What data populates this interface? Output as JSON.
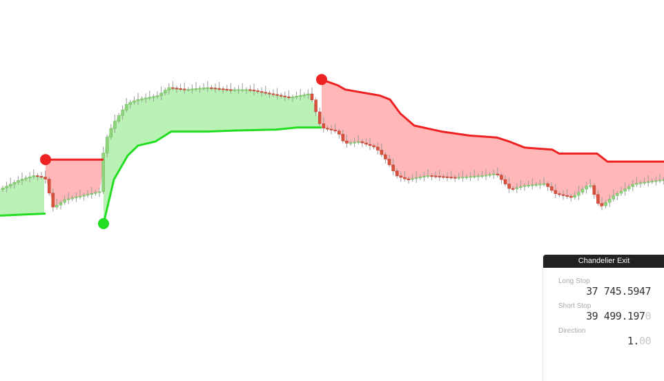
{
  "chart_data": {
    "type": "candlestick",
    "indicator": "Chandelier Exit",
    "long_stop_color": "#22dd22",
    "short_stop_color": "#ee2222",
    "long_fill_color": "#b6f0b0",
    "short_fill_color": "#ffb3b3",
    "bull_candle_color": "#8fd47c",
    "bear_candle_color": "#d9523e",
    "ylim": [
      0,
      100
    ],
    "segments": [
      {
        "direction": "long",
        "x_start": 0,
        "x_end": 66,
        "stop": [
          [
            0,
            24
          ],
          [
            30,
            24.5
          ],
          [
            66,
            25
          ]
        ]
      },
      {
        "direction": "short",
        "x_start": 66,
        "x_end": 150,
        "stop": [
          [
            66,
            52
          ],
          [
            150,
            52
          ]
        ]
      },
      {
        "direction": "long",
        "x_start": 150,
        "x_end": 466,
        "stop": [
          [
            150,
            20
          ],
          [
            165,
            42
          ],
          [
            185,
            54
          ],
          [
            200,
            59
          ],
          [
            225,
            61
          ],
          [
            248,
            66
          ],
          [
            300,
            66
          ],
          [
            340,
            66.5
          ],
          [
            400,
            67
          ],
          [
            430,
            68
          ],
          [
            466,
            68
          ]
        ]
      },
      {
        "direction": "short",
        "x_start": 466,
        "x_end": 962,
        "stop": [
          [
            466,
            92
          ],
          [
            490,
            89
          ],
          [
            500,
            87
          ],
          [
            550,
            84
          ],
          [
            565,
            82
          ],
          [
            580,
            75
          ],
          [
            600,
            69
          ],
          [
            640,
            66
          ],
          [
            680,
            64
          ],
          [
            720,
            63
          ],
          [
            738,
            61
          ],
          [
            760,
            58
          ],
          [
            800,
            57
          ],
          [
            810,
            55
          ],
          [
            865,
            55
          ],
          [
            880,
            51
          ],
          [
            962,
            51
          ]
        ]
      }
    ],
    "signals": [
      {
        "type": "sell",
        "x": 66,
        "y": 52
      },
      {
        "type": "buy",
        "x": 150,
        "y": 20
      },
      {
        "type": "sell",
        "x": 466,
        "y": 92
      }
    ],
    "closes": [
      [
        0,
        37
      ],
      [
        30,
        42
      ],
      [
        50,
        44
      ],
      [
        66,
        43
      ],
      [
        78,
        28
      ],
      [
        95,
        32
      ],
      [
        120,
        34
      ],
      [
        145,
        36
      ],
      [
        152,
        60
      ],
      [
        165,
        70
      ],
      [
        185,
        80
      ],
      [
        200,
        82
      ],
      [
        230,
        84
      ],
      [
        245,
        88
      ],
      [
        270,
        87
      ],
      [
        300,
        88
      ],
      [
        330,
        87
      ],
      [
        360,
        87
      ],
      [
        390,
        85
      ],
      [
        420,
        83
      ],
      [
        450,
        85
      ],
      [
        466,
        68
      ],
      [
        490,
        66
      ],
      [
        500,
        60
      ],
      [
        520,
        61
      ],
      [
        545,
        58
      ],
      [
        560,
        52
      ],
      [
        575,
        44
      ],
      [
        590,
        42
      ],
      [
        620,
        44
      ],
      [
        660,
        43
      ],
      [
        700,
        44
      ],
      [
        720,
        45
      ],
      [
        740,
        37
      ],
      [
        760,
        39
      ],
      [
        790,
        40
      ],
      [
        805,
        35
      ],
      [
        830,
        33
      ],
      [
        855,
        40
      ],
      [
        870,
        28
      ],
      [
        890,
        34
      ],
      [
        920,
        40
      ],
      [
        962,
        42
      ]
    ]
  },
  "panel": {
    "title": "Chandelier Exit",
    "long_stop": {
      "label": "Long Stop",
      "value": "37 745.5947",
      "value_main": "37 745.5947",
      "value_faded": ""
    },
    "short_stop": {
      "label": "Short Stop",
      "value": "39 499.1970",
      "value_main": "39 499.197",
      "value_faded": "0"
    },
    "direction": {
      "label": "Direction",
      "value": "1.00",
      "value_main": "1.",
      "value_faded": "00"
    }
  }
}
